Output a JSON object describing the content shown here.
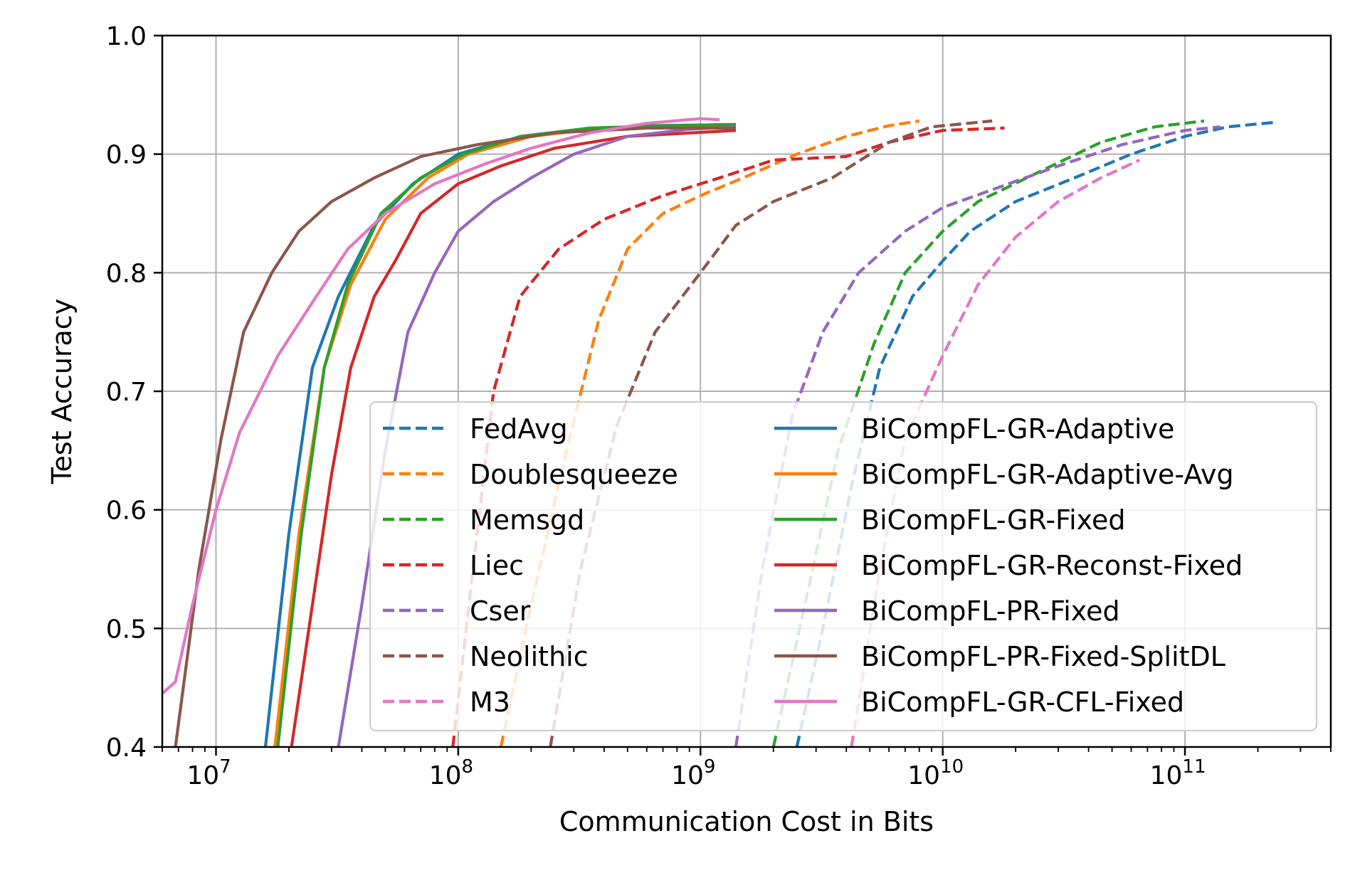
{
  "chart_data": {
    "type": "line",
    "title": "",
    "xlabel": "Communication Cost in Bits",
    "ylabel": "Test Accuracy",
    "xscale": "log",
    "xlim": [
      6000000,
      400000000000
    ],
    "ylim": [
      0.4,
      1.0
    ],
    "grid": true,
    "legend_position": "lower-right",
    "x_ticks": [
      {
        "value": 10000000,
        "base": "10",
        "exp": "7"
      },
      {
        "value": 100000000,
        "base": "10",
        "exp": "8"
      },
      {
        "value": 1000000000,
        "base": "10",
        "exp": "9"
      },
      {
        "value": 10000000000,
        "base": "10",
        "exp": "10"
      },
      {
        "value": 100000000000,
        "base": "10",
        "exp": "11"
      }
    ],
    "y_ticks": [
      {
        "value": 0.4,
        "label": "0.4"
      },
      {
        "value": 0.5,
        "label": "0.5"
      },
      {
        "value": 0.6,
        "label": "0.6"
      },
      {
        "value": 0.7,
        "label": "0.7"
      },
      {
        "value": 0.8,
        "label": "0.8"
      },
      {
        "value": 0.9,
        "label": "0.9"
      },
      {
        "value": 1.0,
        "label": "1.0"
      }
    ],
    "series": [
      {
        "name": "FedAvg",
        "color": "#1f77b4",
        "style": "dashed",
        "points": [
          [
            2500000000,
            0.4
          ],
          [
            3200000000,
            0.5
          ],
          [
            4200000000,
            0.62
          ],
          [
            5500000000,
            0.72
          ],
          [
            7500000000,
            0.78
          ],
          [
            10000000000,
            0.81
          ],
          [
            13000000000,
            0.835
          ],
          [
            20000000000,
            0.86
          ],
          [
            35000000000,
            0.88
          ],
          [
            60000000000,
            0.9
          ],
          [
            100000000000,
            0.915
          ],
          [
            150000000000,
            0.923
          ],
          [
            240000000000,
            0.927
          ]
        ]
      },
      {
        "name": "Doublesqueeze",
        "color": "#ff7f0e",
        "style": "dashed",
        "points": [
          [
            150000000,
            0.4
          ],
          [
            200000000,
            0.52
          ],
          [
            280000000,
            0.65
          ],
          [
            380000000,
            0.76
          ],
          [
            500000000,
            0.82
          ],
          [
            700000000,
            0.85
          ],
          [
            1000000000,
            0.865
          ],
          [
            1500000000,
            0.88
          ],
          [
            2500000000,
            0.9
          ],
          [
            4000000000,
            0.915
          ],
          [
            6000000000,
            0.924
          ],
          [
            8000000000,
            0.928
          ]
        ]
      },
      {
        "name": "Memsgd",
        "color": "#2ca02c",
        "style": "dashed",
        "points": [
          [
            2000000000,
            0.4
          ],
          [
            2700000000,
            0.52
          ],
          [
            3700000000,
            0.65
          ],
          [
            5200000000,
            0.74
          ],
          [
            7000000000,
            0.8
          ],
          [
            10000000000,
            0.835
          ],
          [
            14000000000,
            0.86
          ],
          [
            25000000000,
            0.885
          ],
          [
            45000000000,
            0.91
          ],
          [
            75000000000,
            0.923
          ],
          [
            120000000000,
            0.928
          ]
        ]
      },
      {
        "name": "Liec",
        "color": "#d62728",
        "style": "dashed",
        "points": [
          [
            95000000,
            0.4
          ],
          [
            115000000,
            0.55
          ],
          [
            140000000,
            0.7
          ],
          [
            180000000,
            0.78
          ],
          [
            260000000,
            0.82
          ],
          [
            400000000,
            0.845
          ],
          [
            700000000,
            0.865
          ],
          [
            1200000000,
            0.88
          ],
          [
            2000000000,
            0.895
          ],
          [
            4000000000,
            0.898
          ],
          [
            6000000000,
            0.91
          ],
          [
            10000000000,
            0.92
          ],
          [
            18000000000,
            0.922
          ]
        ]
      },
      {
        "name": "Cser",
        "color": "#9467bd",
        "style": "dashed",
        "points": [
          [
            1400000000,
            0.4
          ],
          [
            1800000000,
            0.55
          ],
          [
            2400000000,
            0.68
          ],
          [
            3200000000,
            0.75
          ],
          [
            4500000000,
            0.8
          ],
          [
            7000000000,
            0.835
          ],
          [
            10000000000,
            0.855
          ],
          [
            16000000000,
            0.87
          ],
          [
            30000000000,
            0.89
          ],
          [
            55000000000,
            0.908
          ],
          [
            100000000000,
            0.92
          ],
          [
            140000000000,
            0.923
          ]
        ]
      },
      {
        "name": "Neolithic",
        "color": "#8c564b",
        "style": "dashed",
        "points": [
          [
            240000000,
            0.4
          ],
          [
            320000000,
            0.55
          ],
          [
            450000000,
            0.67
          ],
          [
            650000000,
            0.75
          ],
          [
            1000000000,
            0.8
          ],
          [
            1400000000,
            0.84
          ],
          [
            2000000000,
            0.86
          ],
          [
            3500000000,
            0.88
          ],
          [
            6000000000,
            0.91
          ],
          [
            9000000000,
            0.923
          ],
          [
            16000000000,
            0.928
          ]
        ]
      },
      {
        "name": "M3",
        "color": "#e377c2",
        "style": "dashed",
        "points": [
          [
            4200000000,
            0.4
          ],
          [
            5500000000,
            0.55
          ],
          [
            7000000000,
            0.66
          ],
          [
            10000000000,
            0.73
          ],
          [
            14000000000,
            0.79
          ],
          [
            20000000000,
            0.83
          ],
          [
            30000000000,
            0.86
          ],
          [
            45000000000,
            0.88
          ],
          [
            65000000000,
            0.895
          ]
        ]
      },
      {
        "name": "BiCompFL-GR-Adaptive",
        "color": "#1f77b4",
        "style": "solid",
        "points": [
          [
            16000000,
            0.4
          ],
          [
            20000000,
            0.58
          ],
          [
            25000000,
            0.72
          ],
          [
            32000000,
            0.78
          ],
          [
            45000000,
            0.84
          ],
          [
            65000000,
            0.875
          ],
          [
            100000000,
            0.9
          ],
          [
            160000000,
            0.912
          ],
          [
            300000000,
            0.92
          ],
          [
            600000000,
            0.924
          ],
          [
            1400000000,
            0.925
          ]
        ]
      },
      {
        "name": "BiCompFL-GR-Adaptive-Avg",
        "color": "#ff7f0e",
        "style": "solid",
        "points": [
          [
            17500000,
            0.4
          ],
          [
            22000000,
            0.58
          ],
          [
            28000000,
            0.72
          ],
          [
            36000000,
            0.79
          ],
          [
            50000000,
            0.845
          ],
          [
            75000000,
            0.88
          ],
          [
            110000000,
            0.9
          ],
          [
            200000000,
            0.915
          ],
          [
            400000000,
            0.922
          ],
          [
            800000000,
            0.924
          ],
          [
            1400000000,
            0.925
          ]
        ]
      },
      {
        "name": "BiCompFL-GR-Fixed",
        "color": "#2ca02c",
        "style": "solid",
        "points": [
          [
            18000000,
            0.4
          ],
          [
            22500000,
            0.58
          ],
          [
            28000000,
            0.72
          ],
          [
            35000000,
            0.79
          ],
          [
            48000000,
            0.85
          ],
          [
            70000000,
            0.88
          ],
          [
            105000000,
            0.9
          ],
          [
            180000000,
            0.915
          ],
          [
            350000000,
            0.922
          ],
          [
            700000000,
            0.924
          ],
          [
            1400000000,
            0.925
          ]
        ]
      },
      {
        "name": "BiCompFL-GR-Reconst-Fixed",
        "color": "#d62728",
        "style": "solid",
        "points": [
          [
            20500000,
            0.4
          ],
          [
            25000000,
            0.52
          ],
          [
            30000000,
            0.63
          ],
          [
            36000000,
            0.72
          ],
          [
            45000000,
            0.78
          ],
          [
            55000000,
            0.81
          ],
          [
            70000000,
            0.85
          ],
          [
            100000000,
            0.875
          ],
          [
            150000000,
            0.89
          ],
          [
            250000000,
            0.905
          ],
          [
            500000000,
            0.915
          ],
          [
            1400000000,
            0.92
          ]
        ]
      },
      {
        "name": "BiCompFL-PR-Fixed",
        "color": "#9467bd",
        "style": "solid",
        "points": [
          [
            32000000,
            0.4
          ],
          [
            40000000,
            0.52
          ],
          [
            50000000,
            0.65
          ],
          [
            62000000,
            0.75
          ],
          [
            80000000,
            0.8
          ],
          [
            100000000,
            0.835
          ],
          [
            140000000,
            0.86
          ],
          [
            200000000,
            0.88
          ],
          [
            300000000,
            0.9
          ],
          [
            500000000,
            0.915
          ],
          [
            900000000,
            0.921
          ],
          [
            1400000000,
            0.923
          ]
        ]
      },
      {
        "name": "BiCompFL-PR-Fixed-SplitDL",
        "color": "#8c564b",
        "style": "solid",
        "points": [
          [
            6800000,
            0.4
          ],
          [
            8500000,
            0.55
          ],
          [
            10500000,
            0.66
          ],
          [
            13000000,
            0.75
          ],
          [
            17000000,
            0.8
          ],
          [
            22000000,
            0.835
          ],
          [
            30000000,
            0.86
          ],
          [
            45000000,
            0.88
          ],
          [
            70000000,
            0.898
          ],
          [
            120000000,
            0.908
          ],
          [
            250000000,
            0.918
          ],
          [
            600000000,
            0.922
          ],
          [
            1400000000,
            0.922
          ]
        ]
      },
      {
        "name": "BiCompFL-GR-CFL-Fixed",
        "color": "#e377c2",
        "style": "solid",
        "points": [
          [
            6000000,
            0.445
          ],
          [
            6800000,
            0.455
          ],
          [
            8000000,
            0.52
          ],
          [
            10000000,
            0.6
          ],
          [
            12500000,
            0.665
          ],
          [
            18000000,
            0.73
          ],
          [
            25000000,
            0.775
          ],
          [
            35000000,
            0.82
          ],
          [
            50000000,
            0.85
          ],
          [
            80000000,
            0.875
          ],
          [
            130000000,
            0.892
          ],
          [
            200000000,
            0.905
          ],
          [
            350000000,
            0.918
          ],
          [
            600000000,
            0.926
          ],
          [
            1000000000,
            0.93
          ],
          [
            1200000000,
            0.929
          ]
        ]
      }
    ]
  }
}
